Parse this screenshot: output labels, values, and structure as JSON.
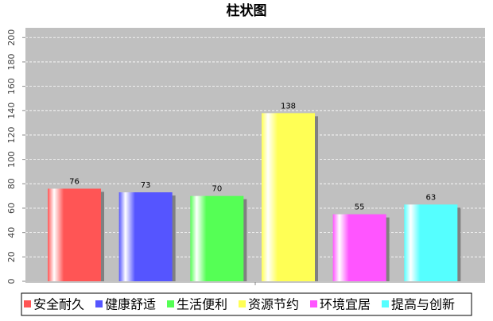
{
  "chart_data": {
    "type": "bar",
    "title": "柱状图",
    "series": [
      {
        "name": "安全耐久",
        "color": "#ff5555",
        "values": [
          76
        ]
      },
      {
        "name": "健康舒适",
        "color": "#5555ff",
        "values": [
          73
        ]
      },
      {
        "name": "生活便利",
        "color": "#55ff55",
        "values": [
          70
        ]
      },
      {
        "name": "资源节约",
        "color": "#ffff55",
        "values": [
          138
        ]
      },
      {
        "name": "环境宜居",
        "color": "#ff55ff",
        "values": [
          55
        ]
      },
      {
        "name": "提高与创新",
        "color": "#55ffff",
        "values": [
          63
        ]
      }
    ],
    "ylim": [
      0,
      208
    ],
    "yticks": [
      0,
      20,
      40,
      60,
      80,
      100,
      120,
      140,
      160,
      180,
      200
    ],
    "grid": true,
    "legend": "bottom"
  }
}
